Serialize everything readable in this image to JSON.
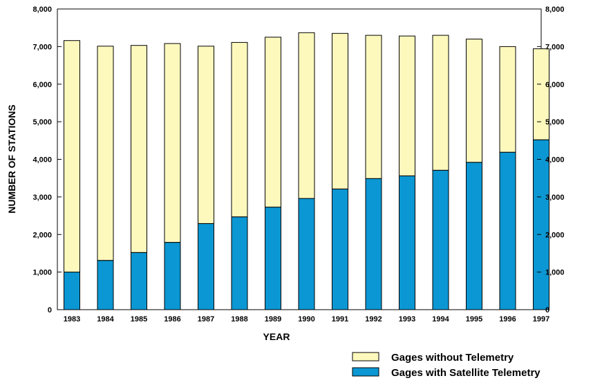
{
  "chart_data": {
    "type": "bar",
    "stacked": true,
    "title": "",
    "xlabel": "YEAR",
    "ylabel": "NUMBER OF STATIONS",
    "ylim": [
      0,
      8000
    ],
    "y_ticks": [
      "0",
      "1,000",
      "2,000",
      "3,000",
      "4,000",
      "5,000",
      "6,000",
      "7,000",
      "8,000"
    ],
    "y_tick_values": [
      0,
      1000,
      2000,
      3000,
      4000,
      5000,
      6000,
      7000,
      8000
    ],
    "secondary_y_axis": true,
    "grid": false,
    "legend_position": "bottom-right",
    "categories": [
      "1983",
      "1984",
      "1985",
      "1986",
      "1987",
      "1988",
      "1989",
      "1990",
      "1991",
      "1992",
      "1993",
      "1994",
      "1995",
      "1996",
      "1997"
    ],
    "series": [
      {
        "name": "Gages with Satellite Telemetry",
        "color": "#0b97d3",
        "values": [
          1000,
          1310,
          1520,
          1790,
          2290,
          2470,
          2730,
          2960,
          3210,
          3490,
          3560,
          3710,
          3920,
          4190,
          4520
        ]
      },
      {
        "name": "Gages without Telemetry",
        "color": "#fdf9bd",
        "values": [
          6160,
          5700,
          5510,
          5290,
          4720,
          4640,
          4520,
          4410,
          4140,
          3810,
          3720,
          3590,
          3280,
          2810,
          2420
        ]
      }
    ],
    "totals": [
      7160,
      7010,
      7030,
      7080,
      7010,
      7110,
      7250,
      7370,
      7350,
      7300,
      7280,
      7300,
      7200,
      7000,
      6940
    ]
  }
}
